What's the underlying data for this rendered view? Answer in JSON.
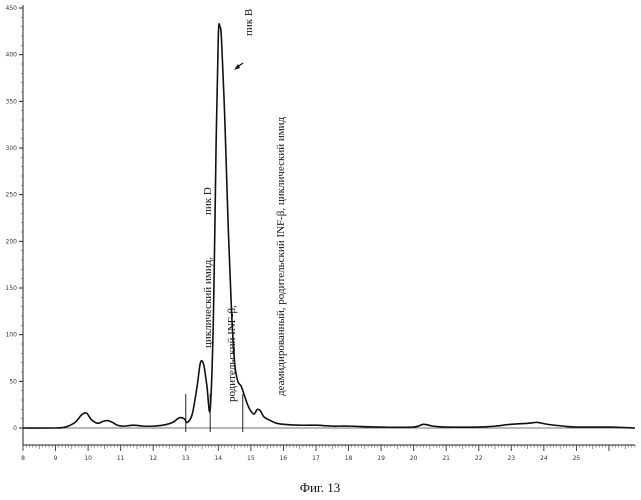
{
  "chart_data": {
    "type": "line",
    "title": "",
    "xlabel": "",
    "ylabel": "",
    "xlim": [
      8,
      26.8
    ],
    "ylim": [
      0,
      450
    ],
    "x_ticks": [
      8,
      9,
      10,
      11,
      12,
      13,
      14,
      15,
      16,
      17,
      18,
      19,
      20,
      21,
      22,
      23,
      24,
      25
    ],
    "y_ticks": [
      0,
      50,
      100,
      150,
      200,
      250,
      300,
      350,
      400,
      450
    ],
    "grid": false,
    "series": [
      {
        "x": [
          8.0,
          9.0,
          9.3,
          9.6,
          9.8,
          9.95,
          10.1,
          10.3,
          10.45,
          10.6,
          10.75,
          10.9,
          11.1,
          11.4,
          11.7,
          12.0,
          12.3,
          12.6,
          12.8,
          12.95,
          13.05,
          13.2,
          13.35,
          13.45,
          13.55,
          13.65,
          13.75,
          13.85,
          13.93,
          14.0,
          14.05,
          14.1,
          14.2,
          14.3,
          14.4,
          14.5,
          14.6,
          14.7,
          14.8,
          14.9,
          15.0,
          15.1,
          15.2,
          15.3,
          15.4,
          15.6,
          15.8,
          16.0,
          16.5,
          17.0,
          17.5,
          18.0,
          19.0,
          20.0,
          20.3,
          20.6,
          21.0,
          22.0,
          22.5,
          23.0,
          23.5,
          23.8,
          24.1,
          24.6,
          25.0,
          26.0,
          26.8
        ],
        "y": [
          0,
          0,
          1,
          6,
          14,
          16,
          9,
          5,
          7,
          8,
          6,
          3,
          2,
          3,
          2,
          2,
          3,
          6,
          11,
          10,
          6,
          15,
          45,
          70,
          68,
          45,
          20,
          120,
          300,
          420,
          430,
          415,
          330,
          220,
          130,
          70,
          50,
          45,
          35,
          25,
          18,
          15,
          20,
          18,
          12,
          8,
          5,
          4,
          3,
          3,
          2,
          2,
          1,
          1,
          4,
          2,
          1,
          1,
          2,
          4,
          5,
          6,
          4,
          2,
          1,
          1,
          0
        ]
      }
    ],
    "annotations": {
      "peak_b": "пик B",
      "peak_d": "пик D",
      "label_cyclic": "циклический имид,",
      "label_parent": "родительский INF-β,",
      "label_deamidated": "деамидированный, родительский INF-β, циклический имид"
    },
    "integration_marks_x": [
      13.0,
      13.75,
      14.75
    ]
  },
  "figure": {
    "caption": "Фиг. 13"
  }
}
